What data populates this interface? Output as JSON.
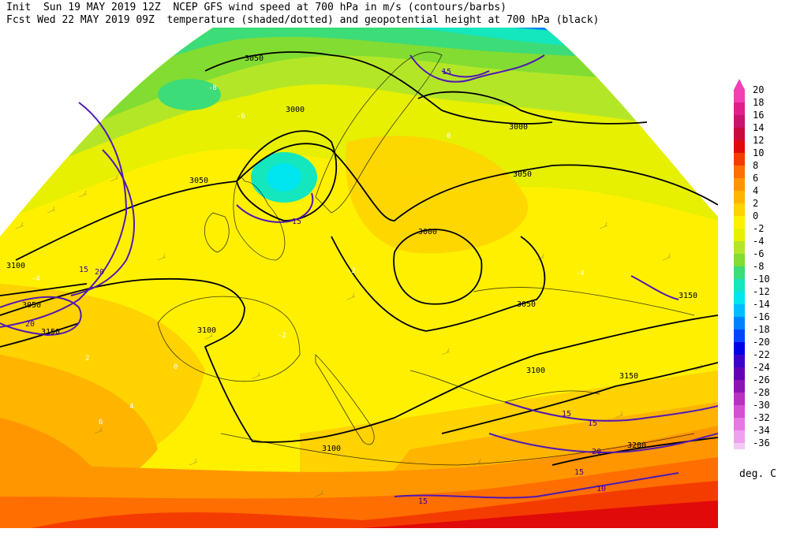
{
  "header": {
    "line1": "Init  Sun 19 MAY 2019 12Z  NCEP GFS wind speed at 700 hPa in m/s (contours/barbs)",
    "line2": "Fcst Wed 22 MAY 2019 09Z  temperature (shaded/dotted) and geopotential height at 700 hPa (black)"
  },
  "legend": {
    "units": "deg. C",
    "levels": [
      {
        "label": "20",
        "color": "#f040b4"
      },
      {
        "label": "18",
        "color": "#e01e8c"
      },
      {
        "label": "16",
        "color": "#c8146e"
      },
      {
        "label": "14",
        "color": "#c80a3c"
      },
      {
        "label": "12",
        "color": "#e00a0a"
      },
      {
        "label": "10",
        "color": "#f53c00"
      },
      {
        "label": "8",
        "color": "#ff6e00"
      },
      {
        "label": "6",
        "color": "#ff9600"
      },
      {
        "label": "4",
        "color": "#ffb400"
      },
      {
        "label": "2",
        "color": "#ffd200"
      },
      {
        "label": "0",
        "color": "#fff000"
      },
      {
        "label": "-2",
        "color": "#e6f000"
      },
      {
        "label": "-4",
        "color": "#b4e628"
      },
      {
        "label": "-6",
        "color": "#82dc32"
      },
      {
        "label": "-8",
        "color": "#3cdc78"
      },
      {
        "label": "-10",
        "color": "#14e6be"
      },
      {
        "label": "-12",
        "color": "#00e6f0"
      },
      {
        "label": "-14",
        "color": "#00beff"
      },
      {
        "label": "-16",
        "color": "#0082ff"
      },
      {
        "label": "-18",
        "color": "#0046ff"
      },
      {
        "label": "-20",
        "color": "#0000e6"
      },
      {
        "label": "-22",
        "color": "#3c00c8"
      },
      {
        "label": "-24",
        "color": "#6400b4"
      },
      {
        "label": "-26",
        "color": "#8c14b4"
      },
      {
        "label": "-28",
        "color": "#b432be"
      },
      {
        "label": "-30",
        "color": "#d250d2"
      },
      {
        "label": "-32",
        "color": "#e678e6"
      },
      {
        "label": "-34",
        "color": "#f0a0f0"
      },
      {
        "label": "-36",
        "color": "#f5c8f5"
      }
    ]
  },
  "map": {
    "height_labels": [
      "3050",
      "3000",
      "3050",
      "3000",
      "3050",
      "3000",
      "3050",
      "3050",
      "3100",
      "3100",
      "3100",
      "3150",
      "3150",
      "3200",
      "3100",
      "3150"
    ],
    "wind_labels": [
      "15",
      "15",
      "20",
      "15",
      "20",
      "15",
      "15",
      "20",
      "15",
      "15",
      "10"
    ],
    "temp_labels": [
      "-8",
      "-6",
      "-4",
      "-2",
      "0",
      "2",
      "4",
      "6",
      "-2",
      "0",
      "-4"
    ]
  }
}
